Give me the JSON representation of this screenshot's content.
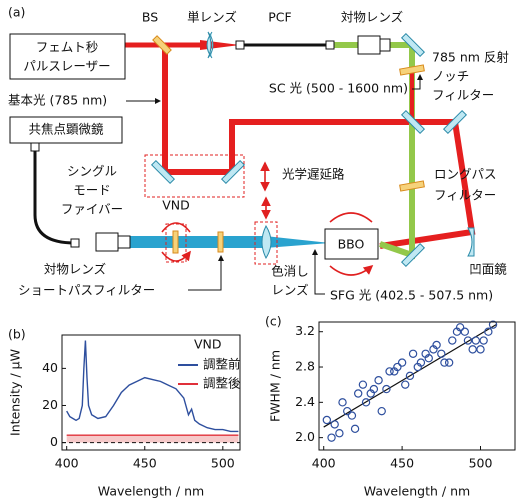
{
  "diagram": {
    "panel_label": "(a)",
    "bs": "BS",
    "single_lens": "単レンズ",
    "pcf": "PCF",
    "objective_top": "対物レンズ",
    "laser": [
      "フェムト秒",
      "パルスレーザー"
    ],
    "notch_filter": [
      "785 nm 反射",
      "ノッチ",
      "フィルター"
    ],
    "fundamental": "基本光 (785 nm)",
    "sc_light": "SC 光 (500 - 1600 nm)",
    "microscope": "共焦点顕微鏡",
    "fiber": [
      "シングル",
      "モード",
      "ファイバー"
    ],
    "delay_line": "光学遅延路",
    "longpass": [
      "ロングパス",
      "フィルター"
    ],
    "vnd": "VND",
    "bbo": "BBO",
    "objective_bottom": "対物レンズ",
    "achromat": [
      "色消し",
      "レンズ"
    ],
    "concave_mirror": "凹面鏡",
    "shortpass": "ショートパスフィルター",
    "sfg_light": "SFG 光 (402.5 - 507.5 nm)"
  },
  "chart_data": [
    {
      "type": "line",
      "panel_label": "(b)",
      "x_label": "Wavelength / nm",
      "y_label": "Intensity / μW",
      "legend_title": "VND",
      "x": [
        400,
        402,
        404,
        406,
        408,
        410,
        411,
        412,
        413,
        414,
        416,
        418,
        420,
        425,
        430,
        435,
        440,
        445,
        450,
        455,
        460,
        465,
        470,
        475,
        478,
        480,
        482,
        485,
        490,
        495,
        500,
        505,
        510
      ],
      "series": [
        {
          "name": "調整前",
          "color": "#2e4f9e",
          "values": [
            17,
            14,
            13,
            12,
            13,
            20,
            40,
            55,
            35,
            20,
            15,
            14,
            13,
            14,
            20,
            27,
            31,
            33,
            35,
            34,
            33,
            31,
            29,
            24,
            15,
            18,
            12,
            10,
            8,
            7,
            7,
            6,
            6
          ]
        },
        {
          "name": "調整後",
          "color": "#e0303a",
          "fill": "#f6c9c9",
          "values": [
            4,
            4,
            4,
            4,
            4,
            4,
            4,
            4,
            4,
            4,
            4,
            4,
            4,
            4,
            4,
            4,
            4,
            4,
            4,
            4,
            4,
            4,
            4,
            4,
            4,
            4,
            4,
            4,
            4,
            4,
            4,
            4,
            4
          ]
        }
      ],
      "hline": 0,
      "xlim": [
        397,
        511
      ],
      "ylim": [
        -4,
        58
      ],
      "xticks": [
        400,
        450,
        500
      ],
      "yticks": [
        0,
        20,
        40
      ]
    },
    {
      "type": "scatter",
      "panel_label": "(c)",
      "x_label": "Wavelength / nm",
      "y_label": "FWHM / nm",
      "color": "#2e4f9e",
      "x": [
        402,
        405,
        407,
        410,
        412,
        415,
        418,
        420,
        422,
        425,
        427,
        430,
        432,
        435,
        437,
        440,
        442,
        445,
        447,
        450,
        452,
        455,
        457,
        460,
        462,
        465,
        467,
        470,
        472,
        475,
        477,
        480,
        482,
        485,
        487,
        490,
        492,
        495,
        497,
        500,
        502,
        505,
        508
      ],
      "values": [
        2.2,
        2.0,
        2.15,
        2.05,
        2.4,
        2.3,
        2.25,
        2.1,
        2.5,
        2.6,
        2.4,
        2.5,
        2.55,
        2.65,
        2.3,
        2.55,
        2.75,
        2.75,
        2.8,
        2.85,
        2.6,
        2.7,
        2.95,
        2.8,
        2.85,
        2.95,
        2.9,
        3.0,
        3.05,
        2.95,
        2.85,
        2.85,
        3.1,
        3.2,
        3.25,
        3.2,
        3.1,
        3.0,
        3.1,
        3.0,
        3.1,
        3.2,
        3.28
      ],
      "fit": {
        "x": [
          400,
          510
        ],
        "values": [
          2.12,
          3.28
        ]
      },
      "xlim": [
        397,
        522
      ],
      "ylim": [
        1.86,
        3.31
      ],
      "xticks": [
        400,
        450,
        500
      ],
      "yticks": [
        {
          "value": 2.0,
          "label": "2.0"
        },
        2.4,
        2.8,
        3.2
      ]
    }
  ]
}
